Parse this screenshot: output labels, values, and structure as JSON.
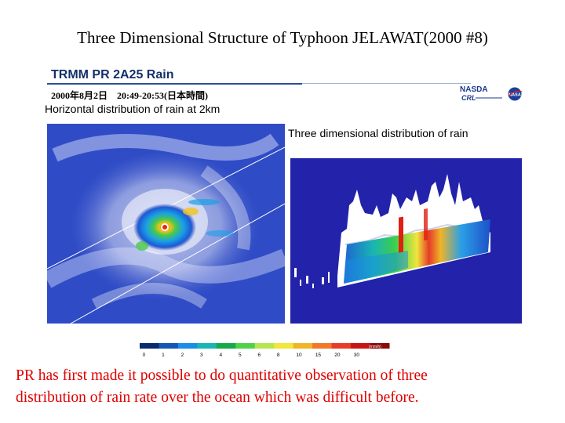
{
  "slide": {
    "title": "Three Dimensional Structure of Typhoon JELAWAT(2000 #8)"
  },
  "header": {
    "product": "TRMM PR 2A25 Rain",
    "datetime": "2000年8月2日　20:49-20:53(日本時間)",
    "logo_text": "NASDA",
    "logo_sub": "CRL",
    "badge_text": "NASA"
  },
  "captions": {
    "horizontal": "Horizontal distribution of rain at 2km",
    "three_dim": "Three dimensional distribution of rain"
  },
  "colorbar": {
    "ticks": [
      "0",
      "1",
      "2",
      "3",
      "4",
      "5",
      "6",
      "8",
      "10",
      "15",
      "20",
      "30"
    ],
    "unit": "(mm/h)",
    "colors": [
      "#0a2a6e",
      "#1456b4",
      "#1a8ee6",
      "#19b4b4",
      "#17a84a",
      "#4fd24a",
      "#b4e650",
      "#f0e63c",
      "#f0b428",
      "#f07828",
      "#e63c28",
      "#c81414",
      "#8c0a0a"
    ]
  },
  "footer": {
    "line1": "PR has first made it possible to do quantitative observation of three",
    "line2": "distribution of rain rate over the ocean which was difficult before."
  },
  "colors": {
    "title_text": "#000000",
    "header_text": "#13306a",
    "footer_text": "#e00000",
    "ocean_blue": "#1a3cb4"
  }
}
